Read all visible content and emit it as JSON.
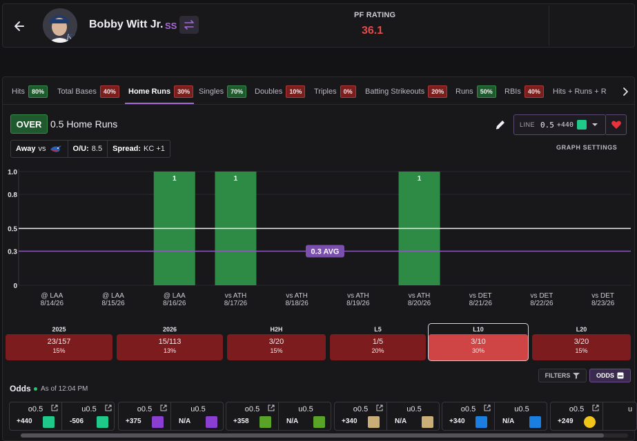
{
  "player": {
    "name": "Bobby Witt Jr.",
    "position": "SS",
    "team_logo": "kc-logo"
  },
  "pf_rating": {
    "label": "PF RATING",
    "value": "36.1"
  },
  "tabs": [
    {
      "label": "Hits",
      "pct": "80%",
      "status": "green"
    },
    {
      "label": "Total Bases",
      "pct": "40%",
      "status": "red"
    },
    {
      "label": "Home Runs",
      "pct": "30%",
      "status": "red",
      "active": true
    },
    {
      "label": "Singles",
      "pct": "70%",
      "status": "green"
    },
    {
      "label": "Doubles",
      "pct": "10%",
      "status": "red"
    },
    {
      "label": "Triples",
      "pct": "0%",
      "status": "red"
    },
    {
      "label": "Batting Strikeouts",
      "pct": "20%",
      "status": "red"
    },
    {
      "label": "Runs",
      "pct": "50%",
      "status": "green"
    },
    {
      "label": "RBIs",
      "pct": "40%",
      "status": "red"
    },
    {
      "label": "Hits + Runs + RBIs",
      "pct": "",
      "status": ""
    }
  ],
  "prop": {
    "side": "OVER",
    "title": "0.5 Home Runs"
  },
  "matchup": {
    "location": "Away",
    "vs": "vs",
    "opponent_logo": "tor-logo",
    "ou_label": "O/U:",
    "ou_value": "8.5",
    "spread_label": "Spread:",
    "spread_value": "KC +1"
  },
  "line_selector": {
    "label": "LINE",
    "value": "0.5",
    "odds": "+440",
    "book_logo": "fanatics-logo"
  },
  "graph_settings_label": "GRAPH SETTINGS",
  "chart_data": {
    "type": "bar",
    "categories": [
      "@ LAA 8/14/26",
      "@ LAA 8/15/26",
      "@ LAA 8/16/26",
      "vs ATH 8/17/26",
      "vs ATH 8/18/26",
      "vs ATH 8/19/26",
      "vs ATH 8/20/26",
      "vs DET 8/21/26",
      "vs DET 8/22/26",
      "vs DET 8/23/26"
    ],
    "x_top": [
      "@ LAA",
      "@ LAA",
      "@ LAA",
      "vs ATH",
      "vs ATH",
      "vs ATH",
      "vs ATH",
      "vs DET",
      "vs DET",
      "vs DET"
    ],
    "x_bottom": [
      "8/14/26",
      "8/15/26",
      "8/16/26",
      "8/17/26",
      "8/18/26",
      "8/19/26",
      "8/20/26",
      "8/21/26",
      "8/22/26",
      "8/23/26"
    ],
    "values": [
      0,
      0,
      1,
      1,
      0,
      0,
      1,
      0,
      0,
      0
    ],
    "yticks": [
      "0",
      "0.3",
      "0.5",
      "0.8",
      "1.0"
    ],
    "ytick_values": [
      0,
      0.3,
      0.5,
      0.8,
      1.0
    ],
    "ylim": [
      0,
      1.0
    ],
    "line_value": 0.5,
    "avg_value": 0.3,
    "avg_label": "0.3 AVG",
    "bar_color": "#2e8b45",
    "avg_color": "#8a5bb8"
  },
  "summary": [
    {
      "label": "2025",
      "value": "23/157",
      "pct": "15%"
    },
    {
      "label": "2026",
      "value": "15/113",
      "pct": "13%"
    },
    {
      "label": "H2H",
      "value": "3/20",
      "pct": "15%"
    },
    {
      "label": "L5",
      "value": "1/5",
      "pct": "20%"
    },
    {
      "label": "L10",
      "value": "3/10",
      "pct": "30%",
      "active": true
    },
    {
      "label": "L20",
      "value": "3/20",
      "pct": "15%"
    }
  ],
  "odds": {
    "title": "Odds",
    "as_of": "As of 12:04 PM",
    "filters_label": "FILTERS",
    "odds_label": "ODDS",
    "books": [
      {
        "over_label": "o0.5",
        "over_value": "+440",
        "under_label": "u0.5",
        "under_value": "-506",
        "logo": "fanatics-logo",
        "color": "#1fc98a"
      },
      {
        "over_label": "o0.5",
        "over_value": "+375",
        "under_label": "u0.5",
        "under_value": "N/A",
        "logo": "hardrock-logo",
        "color": "#8b3fd0"
      },
      {
        "over_label": "o0.5",
        "over_value": "+358",
        "under_label": "u0.5",
        "under_value": "N/A",
        "logo": "draftkings-logo",
        "color": "#5aa329"
      },
      {
        "over_label": "o0.5",
        "over_value": "+340",
        "under_label": "u0.5",
        "under_value": "N/A",
        "logo": "caesars-logo",
        "color": "#c9ae77"
      },
      {
        "over_label": "o0.5",
        "over_value": "+340",
        "under_label": "u0.5",
        "under_value": "N/A",
        "logo": "fanduel-logo",
        "color": "#1a7fe0"
      },
      {
        "over_label": "o0.5",
        "over_value": "+249",
        "under_label": "u",
        "under_value": "",
        "logo": "betmgm-logo",
        "color": "#f0c419"
      }
    ]
  }
}
